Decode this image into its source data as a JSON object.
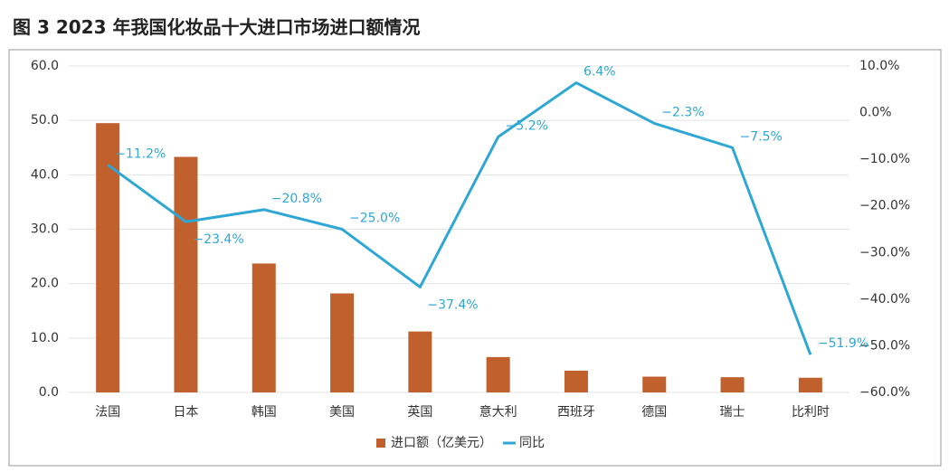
{
  "chart_data": {
    "type": "bar",
    "title": "图 3 2023 年我国化妆品十大进口市场进口额情况",
    "categories": [
      "法国",
      "日本",
      "韩国",
      "美国",
      "英国",
      "意大利",
      "西班牙",
      "德国",
      "瑞士",
      "比利时"
    ],
    "series": [
      {
        "name": "进口额（亿美元）",
        "type": "bar",
        "color": "#c0602d",
        "values": [
          49.5,
          43.3,
          23.7,
          18.2,
          11.2,
          6.5,
          4.0,
          2.9,
          2.8,
          2.7
        ]
      },
      {
        "name": "同比",
        "type": "line",
        "axis": "y2",
        "color": "#2ea7d4",
        "values": [
          -11.2,
          -23.4,
          -20.8,
          -25.0,
          -37.4,
          -5.2,
          6.4,
          -2.3,
          -7.5,
          -51.9
        ],
        "value_labels": [
          "−11.2%",
          "−23.4%",
          "−20.8%",
          "−25.0%",
          "−37.4%",
          "−5.2%",
          "6.4%",
          "−2.3%",
          "−7.5%",
          "−51.9%"
        ]
      }
    ],
    "ylim": [
      0,
      60
    ],
    "yticks": [
      {
        "value": 0,
        "label": "0.0"
      },
      {
        "value": 10,
        "label": "10.0"
      },
      {
        "value": 20,
        "label": "20.0"
      },
      {
        "value": 30,
        "label": "30.0"
      },
      {
        "value": 40,
        "label": "40.0"
      },
      {
        "value": 50,
        "label": "50.0"
      },
      {
        "value": 60,
        "label": "60.0"
      }
    ],
    "y2lim": [
      -60,
      10
    ],
    "y2ticks": [
      {
        "value": -60,
        "label": "−60.0%"
      },
      {
        "value": -50,
        "label": "−50.0%"
      },
      {
        "value": -40,
        "label": "−40.0%"
      },
      {
        "value": -30,
        "label": "−30.0%"
      },
      {
        "value": -20,
        "label": "−20.0%"
      },
      {
        "value": -10,
        "label": "−10.0%"
      },
      {
        "value": 0,
        "label": "0.0%"
      },
      {
        "value": 10,
        "label": "10.0%"
      }
    ],
    "grid": true,
    "legend": "bottom"
  }
}
